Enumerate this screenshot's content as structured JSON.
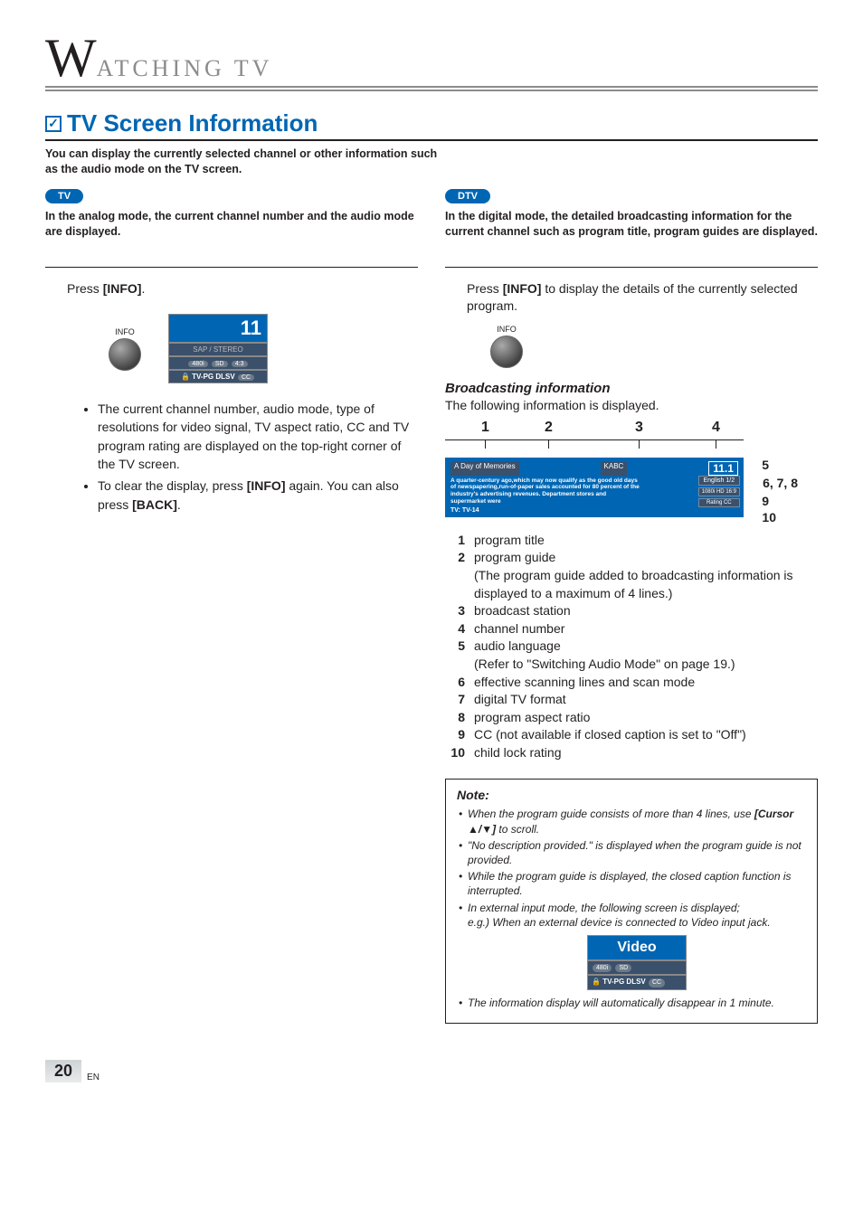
{
  "header": {
    "initial": "W",
    "rest": "ATCHING TV"
  },
  "title": "TV Screen Information",
  "intro": "You can display the currently selected channel or other information such as the audio mode on the TV screen.",
  "tv": {
    "pill": "TV",
    "desc": "In the analog mode, the current channel number and the audio mode are displayed.",
    "press": "Press ",
    "press_btn": "[INFO]",
    "press_end": ".",
    "info_label": "INFO",
    "osd": {
      "channel": "11",
      "audio": "SAP / STEREO",
      "res": "480i",
      "fmt": "SD",
      "ar": "4:3",
      "rating": "TV-PG DLSV",
      "cc": "CC"
    },
    "b1": "The current channel number, audio mode, type of resolutions for video signal, TV aspect ratio, CC and TV program rating are displayed on the top-right corner of the TV screen.",
    "b2a": "To clear the display, press ",
    "b2b": "[INFO]",
    "b2c": " again. You can also press ",
    "b2d": "[BACK]",
    "b2e": "."
  },
  "dtv": {
    "pill": "DTV",
    "desc": "In the digital mode, the detailed broadcasting information for the current channel such as program title, program guides are displayed.",
    "press_a": "Press ",
    "press_b": "[INFO]",
    "press_c": " to display the details of the currently selected program.",
    "info_label": "INFO",
    "subhead": "Broadcasting information",
    "subtext": "The following information is displayed.",
    "box": {
      "program": "A Day of Memories",
      "station": "KABC",
      "channel": "11.1",
      "guide": "A quarter-century ago,which may now qualify as the good old days of newspapering,run-of-paper sales accounted for 80 percent of the industry's advertising revenues. Department stores and supermarket were",
      "rating_line": "TV: TV-14",
      "lang": "English 1/2",
      "res": "1080i",
      "fmt": "HD",
      "ar": "16:9",
      "rating": "Rating",
      "cc": "CC"
    },
    "labels": {
      "n1": "1",
      "n2": "2",
      "n3": "3",
      "n4": "4",
      "n5": "5",
      "n678": "6, 7, 8",
      "n9": "9",
      "n10": "10"
    },
    "legend": [
      {
        "n": "1",
        "t": "program title"
      },
      {
        "n": "2",
        "t": "program guide",
        "p": "(The program guide added to broadcasting information is displayed to a maximum of 4 lines.)"
      },
      {
        "n": "3",
        "t": "broadcast station"
      },
      {
        "n": "4",
        "t": "channel number"
      },
      {
        "n": "5",
        "t": "audio language",
        "p": "(Refer to \"Switching Audio Mode\" on page 19.)"
      },
      {
        "n": "6",
        "t": "effective scanning lines and scan mode"
      },
      {
        "n": "7",
        "t": "digital TV format"
      },
      {
        "n": "8",
        "t": "program aspect ratio"
      },
      {
        "n": "9",
        "t": "CC (not available if closed caption is set to \"Off\")"
      },
      {
        "n": "10",
        "t": "child lock rating"
      }
    ]
  },
  "note": {
    "head": "Note:",
    "n1a": "When the program guide consists of more than 4 lines, use ",
    "n1b": "[Cursor ▲/▼]",
    "n1c": " to scroll.",
    "n2": "\"No description provided.\" is displayed when the program guide is not provided.",
    "n3": "While the program guide is displayed, the closed caption function is interrupted.",
    "n4a": "In external input mode, the following screen is displayed;",
    "n4b": "e.g.) When an external device is connected to Video input jack.",
    "osd": {
      "title": "Video",
      "res": "480i",
      "fmt": "SD",
      "rating": "TV-PG DLSV",
      "cc": "CC"
    },
    "n5": "The information display will automatically disappear in 1 minute."
  },
  "page": {
    "num": "20",
    "en": "EN"
  },
  "colors": {
    "blue": "#0066b3",
    "grey": "#8a8c8e"
  }
}
